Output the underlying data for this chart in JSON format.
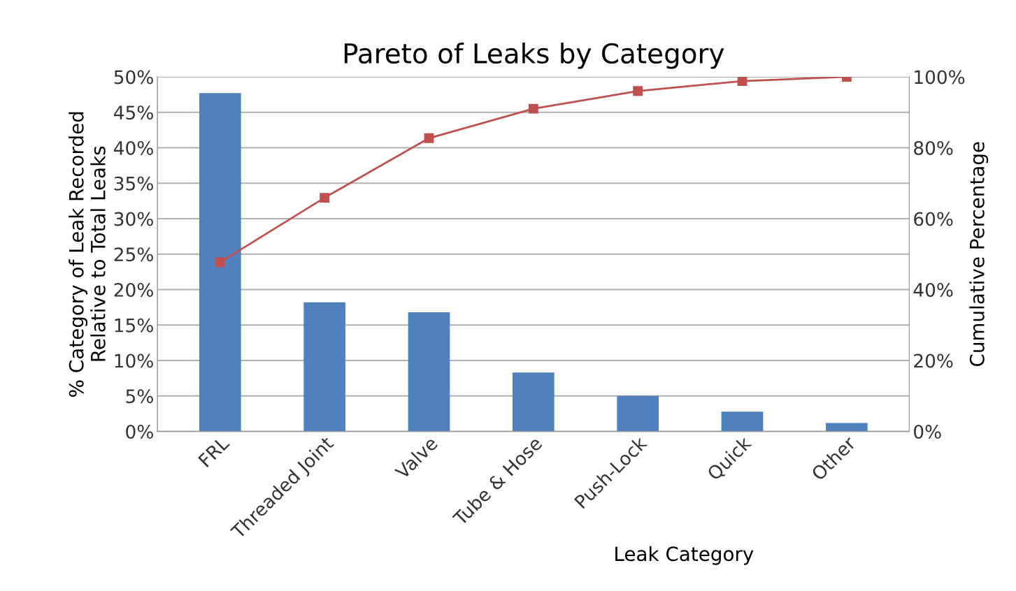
{
  "chart_data": {
    "type": "bar",
    "title": "Pareto of Leaks by Category",
    "xlabel": "Leak Category",
    "ylabel": "% Category of Leak Recorded\nRelative to Total Leaks",
    "y2label": "Cumulative Percentage",
    "categories": [
      "FRL",
      "Threaded Joint",
      "Valve",
      "Tube & Hose",
      "Push-Lock",
      "Quick",
      "Other"
    ],
    "series": [
      {
        "color": "#4f81bd",
        "values": [
          47.7,
          18.2,
          16.8,
          8.3,
          5.0,
          2.8,
          1.2
        ]
      },
      {
        "type": "line",
        "axis": "y2",
        "color": "#c0504d",
        "marker": "square",
        "values": [
          47.7,
          65.9,
          82.7,
          91.0,
          96.0,
          98.8,
          100
        ]
      }
    ],
    "ylim": [
      0,
      50
    ],
    "yticks": [
      {
        "value": 0,
        "label": "0%"
      },
      {
        "value": 5,
        "label": "5%"
      },
      {
        "value": 10,
        "label": "10%"
      },
      {
        "value": 15,
        "label": "15%"
      },
      {
        "value": 20,
        "label": "20%"
      },
      {
        "value": 25,
        "label": "25%"
      },
      {
        "value": 30,
        "label": "30%"
      },
      {
        "value": 35,
        "label": "35%"
      },
      {
        "value": 40,
        "label": "40%"
      },
      {
        "value": 45,
        "label": "45%"
      },
      {
        "value": 50,
        "label": "50%"
      }
    ],
    "y2lim": [
      0,
      100
    ],
    "y2ticks": [
      {
        "value": 0,
        "label": "0%"
      },
      {
        "value": 20,
        "label": "20%"
      },
      {
        "value": 40,
        "label": "40%"
      },
      {
        "value": 60,
        "label": "60%"
      },
      {
        "value": 80,
        "label": "80%"
      },
      {
        "value": 100,
        "label": "100%"
      }
    ],
    "grid": "y",
    "legend": false
  }
}
